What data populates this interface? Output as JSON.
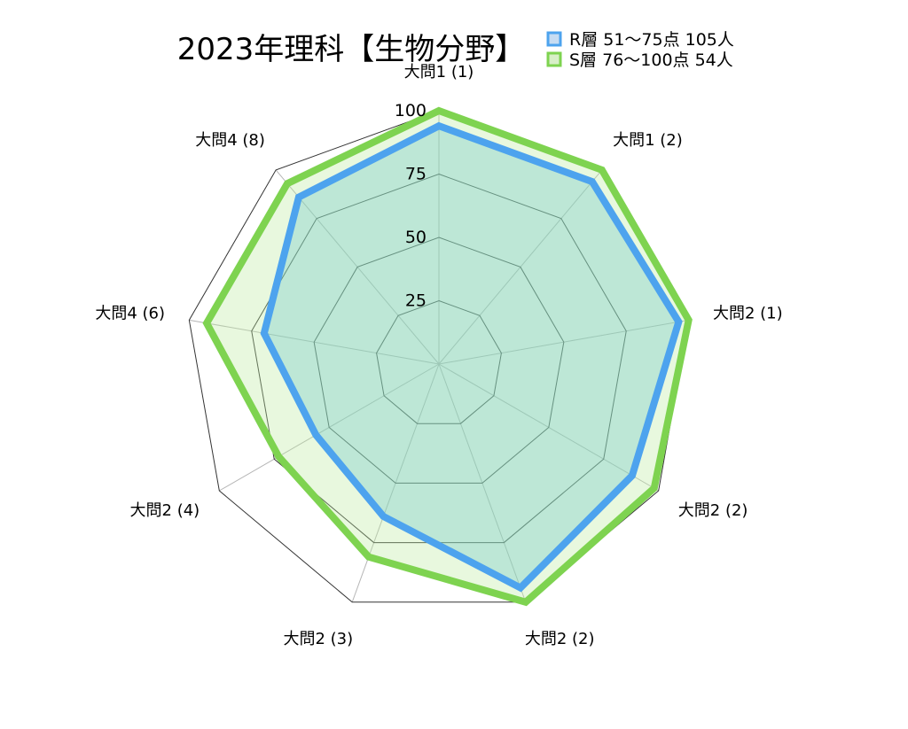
{
  "chart_data": {
    "type": "radar",
    "title": "2023年理科【生物分野】",
    "categories": [
      "大問1 (1)",
      "大問1 (2)",
      "大問2 (1)",
      "大問2 (2)",
      "大問2 (2)",
      "大問2 (3)",
      "大問2 (4)",
      "大問4 (6)",
      "大問4 (8)"
    ],
    "ticks": [
      "25",
      "50",
      "75",
      "100"
    ],
    "rmax": 100,
    "series": [
      {
        "name": "R層 51〜75点 105人",
        "color": "#4da3ee",
        "fill": "rgba(110,200,200,0.35)",
        "values": [
          94,
          94,
          96,
          88,
          94,
          64,
          56,
          70,
          86
        ]
      },
      {
        "name": "S層 76〜100点 54人",
        "color": "#7ed350",
        "fill": "rgba(190,235,160,0.35)",
        "values": [
          100,
          100,
          100,
          98,
          100,
          81,
          73,
          93,
          93
        ]
      }
    ],
    "legend_position": "top-right",
    "grid": true
  }
}
